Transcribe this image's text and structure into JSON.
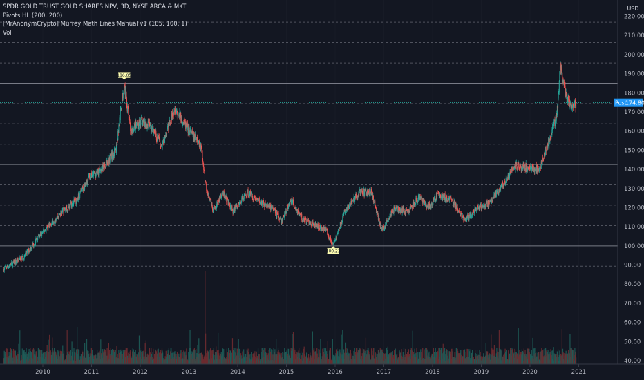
{
  "legend": {
    "symbol_line": "SPDR GOLD TRUST GOLD SHARES NPV, 3D, NYSE ARCA & MKT",
    "indicator_1": "Pivots HL (200, 200)",
    "indicator_2": "[MrAnonymCrypto] Murrey Math Lines Manual v1 (185, 100, 1)",
    "indicator_3": "Vol"
  },
  "currency": "USD",
  "colors": {
    "background": "#131722",
    "grid": "#2a2e39",
    "up": "#26a69a",
    "down": "#ef5350",
    "up_volume": "#1e5d59",
    "down_volume": "#6e2b30",
    "murrey_solid": "#787b86",
    "murrey_dashed": "#50535e",
    "last_price_line": "#26a69a",
    "last_price_tag": "#26a69a",
    "post_tag": "#2196f3",
    "pivot_label_bg": "#ffffb3"
  },
  "chart_data": {
    "type": "candlestick",
    "timeframe": "3D",
    "x_ticks": [
      "2010",
      "2011",
      "2012",
      "2013",
      "2014",
      "2015",
      "2016",
      "2017",
      "2018",
      "2019",
      "2020",
      "2021"
    ],
    "y_ticks": [
      "40.00",
      "50.00",
      "60.00",
      "70.00",
      "80.00",
      "90.00",
      "100.00",
      "110.00",
      "120.00",
      "130.00",
      "140.00",
      "150.00",
      "160.00",
      "170.00",
      "180.00",
      "190.00",
      "200.00",
      "210.00",
      "220.00"
    ],
    "ylim": [
      40,
      222
    ],
    "price_path": [
      {
        "t": 2009.2,
        "v": 88
      },
      {
        "t": 2009.6,
        "v": 94
      },
      {
        "t": 2009.9,
        "v": 104
      },
      {
        "t": 2010.1,
        "v": 110
      },
      {
        "t": 2010.4,
        "v": 118
      },
      {
        "t": 2010.7,
        "v": 124
      },
      {
        "t": 2010.95,
        "v": 136
      },
      {
        "t": 2011.2,
        "v": 140
      },
      {
        "t": 2011.5,
        "v": 150
      },
      {
        "t": 2011.67,
        "v": 185
      },
      {
        "t": 2011.8,
        "v": 160
      },
      {
        "t": 2012.0,
        "v": 165
      },
      {
        "t": 2012.2,
        "v": 163
      },
      {
        "t": 2012.45,
        "v": 152
      },
      {
        "t": 2012.7,
        "v": 172
      },
      {
        "t": 2012.95,
        "v": 162
      },
      {
        "t": 2013.25,
        "v": 152
      },
      {
        "t": 2013.35,
        "v": 130
      },
      {
        "t": 2013.5,
        "v": 118
      },
      {
        "t": 2013.7,
        "v": 128
      },
      {
        "t": 2013.9,
        "v": 118
      },
      {
        "t": 2014.2,
        "v": 128
      },
      {
        "t": 2014.45,
        "v": 123
      },
      {
        "t": 2014.7,
        "v": 120
      },
      {
        "t": 2014.9,
        "v": 113
      },
      {
        "t": 2015.1,
        "v": 124
      },
      {
        "t": 2015.3,
        "v": 115
      },
      {
        "t": 2015.55,
        "v": 111
      },
      {
        "t": 2015.8,
        "v": 109
      },
      {
        "t": 2015.96,
        "v": 100
      },
      {
        "t": 2016.2,
        "v": 118
      },
      {
        "t": 2016.5,
        "v": 128
      },
      {
        "t": 2016.75,
        "v": 128
      },
      {
        "t": 2016.96,
        "v": 108
      },
      {
        "t": 2017.2,
        "v": 119
      },
      {
        "t": 2017.5,
        "v": 118
      },
      {
        "t": 2017.7,
        "v": 125
      },
      {
        "t": 2017.95,
        "v": 120
      },
      {
        "t": 2018.1,
        "v": 127
      },
      {
        "t": 2018.4,
        "v": 124
      },
      {
        "t": 2018.65,
        "v": 113
      },
      {
        "t": 2018.95,
        "v": 120
      },
      {
        "t": 2019.15,
        "v": 122
      },
      {
        "t": 2019.45,
        "v": 132
      },
      {
        "t": 2019.7,
        "v": 142
      },
      {
        "t": 2019.95,
        "v": 141
      },
      {
        "t": 2020.2,
        "v": 140
      },
      {
        "t": 2020.3,
        "v": 148
      },
      {
        "t": 2020.55,
        "v": 168
      },
      {
        "t": 2020.62,
        "v": 193
      },
      {
        "t": 2020.75,
        "v": 178
      },
      {
        "t": 2020.88,
        "v": 172
      },
      {
        "t": 2020.95,
        "v": 174.9
      }
    ],
    "pivot_high": {
      "label": "186.05",
      "t": 2011.67,
      "v": 186.05
    },
    "pivot_low": {
      "label": "100.23",
      "t": 2015.96,
      "v": 100.23
    },
    "murrey_lines_solid": [
      100,
      142.5,
      185
    ],
    "murrey_lines_dashed": [
      89.4,
      110.6,
      121.3,
      131.9,
      153.1,
      163.8,
      174.4,
      195.6,
      206.3,
      216.9
    ],
    "last_price": "174.90",
    "post_market": {
      "label": "Post",
      "value": "174.80"
    }
  }
}
